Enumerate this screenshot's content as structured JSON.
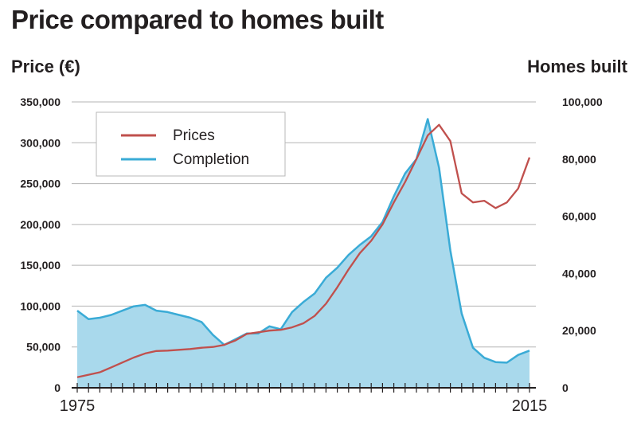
{
  "header": {
    "title": "Price compared to homes built",
    "left_axis_title": "Price (€)",
    "right_axis_title": "Homes built"
  },
  "colors": {
    "prices": "#c0504d",
    "completion_line": "#3aabd6",
    "completion_fill": "#a9d9ec",
    "grid": "#b3b3b3",
    "axis": "#231f20"
  },
  "chart_data": {
    "type": "line",
    "title": "Price compared to homes built",
    "ylabel": "Price (€)",
    "y2label": "Homes built",
    "ylim": [
      0,
      350000
    ],
    "y2lim": [
      0,
      100000
    ],
    "yticks": [
      "0",
      "50,000",
      "100,000",
      "150,000",
      "200,000",
      "250,000",
      "300,000",
      "350,000"
    ],
    "y2ticks": [
      "0",
      "20,000",
      "40,000",
      "60,000",
      "80,000",
      "100,000"
    ],
    "xlabels": [
      "1975",
      "2015"
    ],
    "x": [
      1975,
      1976,
      1977,
      1978,
      1979,
      1980,
      1981,
      1982,
      1983,
      1984,
      1985,
      1986,
      1987,
      1988,
      1989,
      1990,
      1991,
      1992,
      1993,
      1994,
      1995,
      1996,
      1997,
      1998,
      1999,
      2000,
      2001,
      2002,
      2003,
      2004,
      2005,
      2006,
      2007,
      2008,
      2009,
      2010,
      2011,
      2012,
      2013,
      2014,
      2015
    ],
    "grid": true,
    "legend": {
      "position": "top-left",
      "entries": [
        "Prices",
        "Completion"
      ]
    },
    "series": [
      {
        "name": "Prices",
        "axis": "left",
        "style": "line",
        "values": [
          13000,
          16000,
          19000,
          25000,
          31000,
          37000,
          42000,
          45000,
          45500,
          46500,
          47500,
          49000,
          50000,
          52500,
          58000,
          66000,
          68000,
          70000,
          71000,
          74000,
          79000,
          88000,
          103000,
          123000,
          145000,
          165000,
          180000,
          200000,
          227000,
          252000,
          280000,
          309000,
          322000,
          302000,
          238000,
          227000,
          229000,
          220000,
          227000,
          244000,
          282000
        ]
      },
      {
        "name": "Completion",
        "axis": "right",
        "style": "area",
        "values": [
          27000,
          24000,
          24500,
          25500,
          27000,
          28500,
          29000,
          27000,
          26500,
          25500,
          24500,
          23000,
          18500,
          15000,
          17000,
          19000,
          19000,
          21500,
          20500,
          26500,
          30000,
          33000,
          38500,
          42000,
          46500,
          50000,
          53000,
          58000,
          67000,
          75000,
          80000,
          94000,
          77000,
          48000,
          26000,
          14000,
          10500,
          9000,
          8800,
          11500,
          13000
        ]
      }
    ]
  }
}
